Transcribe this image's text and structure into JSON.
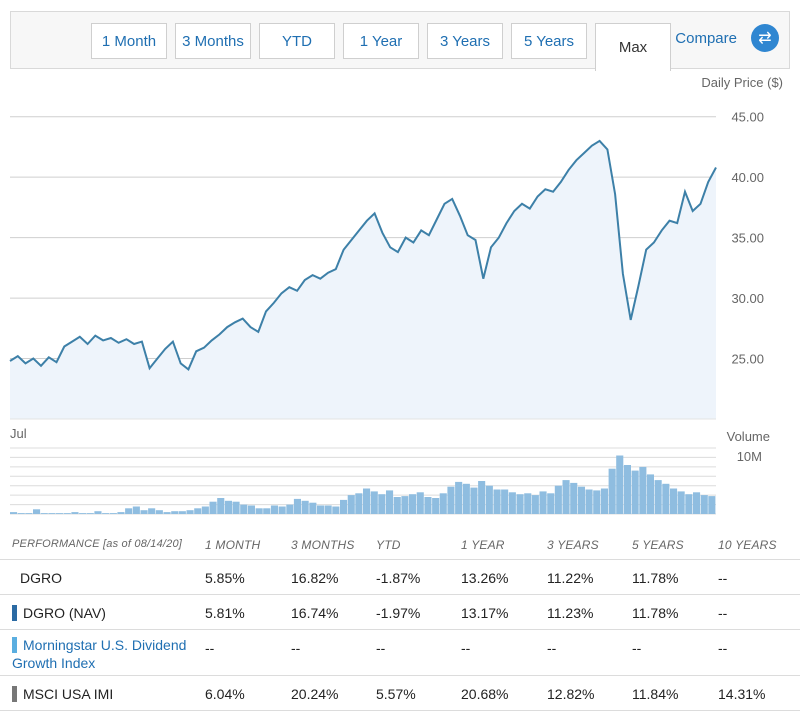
{
  "tabs": [
    {
      "label": "1 Month"
    },
    {
      "label": "3 Months"
    },
    {
      "label": "YTD"
    },
    {
      "label": "1 Year"
    },
    {
      "label": "3 Years"
    },
    {
      "label": "5 Years"
    },
    {
      "label": "Max"
    }
  ],
  "active_tab": "Max",
  "compare_label": "Compare",
  "colors": {
    "line": "#3d80a8",
    "fill": "#eef4fb",
    "volume": "#8fbde0",
    "swatch_nav": "#2b6aa3",
    "swatch_index": "#5aaee0",
    "swatch_msci": "#777777"
  },
  "chart_data": {
    "type": "line",
    "ylabel": "Daily Price ($)",
    "yticks": [
      "45.00",
      "40.00",
      "35.00",
      "30.00",
      "25.00"
    ],
    "ylim": [
      20,
      46.3
    ],
    "x_label": "Jul",
    "series": [
      {
        "values": [
          24.8,
          25.2,
          24.6,
          25.0,
          24.4,
          25.1,
          24.7,
          26.0,
          26.4,
          26.8,
          26.2,
          26.9,
          26.5,
          26.7,
          26.3,
          26.6,
          26.2,
          26.4,
          24.2,
          25.0,
          25.8,
          26.4,
          24.6,
          24.1,
          25.6,
          25.9,
          26.5,
          27.0,
          27.6,
          28.0,
          28.3,
          27.6,
          27.2,
          28.9,
          29.6,
          30.4,
          30.9,
          30.6,
          31.5,
          31.9,
          31.6,
          32.1,
          32.4,
          34.0,
          34.8,
          35.6,
          36.4,
          37.0,
          35.4,
          34.2,
          33.8,
          35.0,
          34.6,
          35.6,
          35.2,
          36.5,
          37.8,
          38.2,
          36.8,
          35.2,
          34.8,
          31.6,
          34.2,
          35.0,
          36.2,
          37.2,
          37.8,
          37.4,
          38.4,
          39.0,
          38.8,
          39.6,
          40.6,
          41.4,
          42.0,
          42.6,
          43.0,
          42.3,
          38.6,
          32.0,
          28.2,
          31.0,
          34.0,
          34.6,
          35.6,
          36.4,
          36.2,
          38.8,
          37.2,
          37.8,
          39.6,
          40.8
        ]
      }
    ],
    "volume": {
      "label": "Volume",
      "ytick": "10M",
      "values": [
        0.2,
        0.1,
        0.1,
        0.5,
        0.1,
        0.1,
        0.1,
        0.1,
        0.2,
        0.1,
        0.1,
        0.3,
        0.1,
        0.1,
        0.2,
        0.6,
        0.8,
        0.4,
        0.6,
        0.4,
        0.2,
        0.3,
        0.3,
        0.4,
        0.6,
        0.8,
        1.3,
        1.7,
        1.4,
        1.3,
        1.0,
        0.9,
        0.6,
        0.6,
        0.9,
        0.8,
        1.0,
        1.6,
        1.4,
        1.2,
        0.9,
        0.9,
        0.8,
        1.5,
        2.0,
        2.2,
        2.7,
        2.4,
        2.1,
        2.5,
        1.8,
        1.9,
        2.1,
        2.3,
        1.8,
        1.7,
        2.2,
        2.9,
        3.4,
        3.2,
        2.8,
        3.5,
        3.0,
        2.6,
        2.6,
        2.3,
        2.1,
        2.2,
        2.0,
        2.4,
        2.2,
        3.0,
        3.6,
        3.3,
        2.9,
        2.6,
        2.5,
        2.7,
        4.8,
        6.2,
        5.2,
        4.6,
        5.0,
        4.2,
        3.6,
        3.2,
        2.7,
        2.4,
        2.1,
        2.3,
        2.0,
        1.9
      ]
    }
  },
  "performance": {
    "headers": [
      "PERFORMANCE [as of 08/14/20]",
      "1 MONTH",
      "3 MONTHS",
      "YTD",
      "1 YEAR",
      "3 YEARS",
      "5 YEARS",
      "10 YEARS"
    ],
    "rows": [
      {
        "name": "DGRO",
        "values": [
          "5.85%",
          "16.82%",
          "-1.87%",
          "13.26%",
          "11.22%",
          "11.78%",
          "--"
        ]
      },
      {
        "name": "DGRO (NAV)",
        "values": [
          "5.81%",
          "16.74%",
          "-1.97%",
          "13.17%",
          "11.23%",
          "11.78%",
          "--"
        ]
      },
      {
        "name": "Morningstar U.S. Dividend Growth Index",
        "values": [
          "--",
          "--",
          "--",
          "--",
          "--",
          "--",
          "--"
        ]
      },
      {
        "name": "MSCI USA IMI",
        "values": [
          "6.04%",
          "20.24%",
          "5.57%",
          "20.68%",
          "12.82%",
          "11.84%",
          "14.31%"
        ]
      }
    ]
  }
}
